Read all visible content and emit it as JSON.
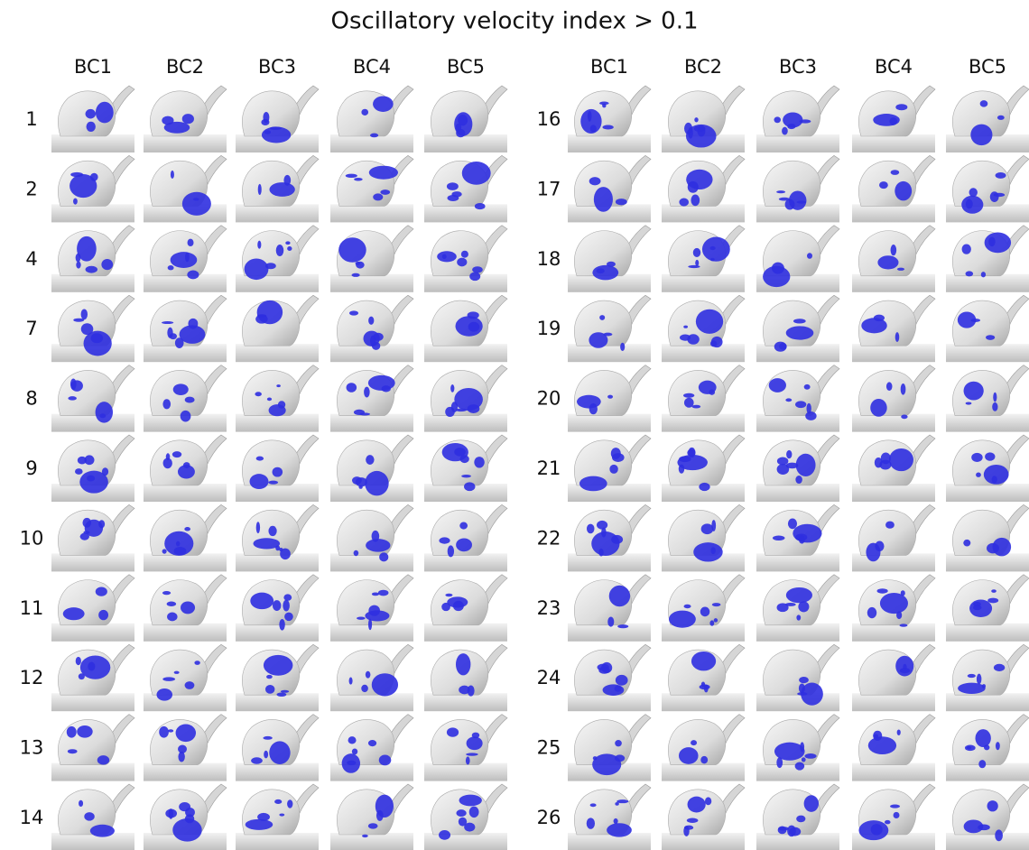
{
  "title": "Oscillatory velocity index > 0.1",
  "left": {
    "columns": [
      "BC1",
      "BC2",
      "BC3",
      "BC4",
      "BC5"
    ],
    "rows": [
      "1",
      "2",
      "4",
      "7",
      "8",
      "9",
      "10",
      "11",
      "12",
      "13",
      "14"
    ]
  },
  "right": {
    "columns": [
      "BC1",
      "BC2",
      "BC3",
      "BC4",
      "BC5"
    ],
    "rows": [
      "16",
      "17",
      "18",
      "19",
      "20",
      "21",
      "22",
      "23",
      "24",
      "25",
      "26"
    ]
  }
}
